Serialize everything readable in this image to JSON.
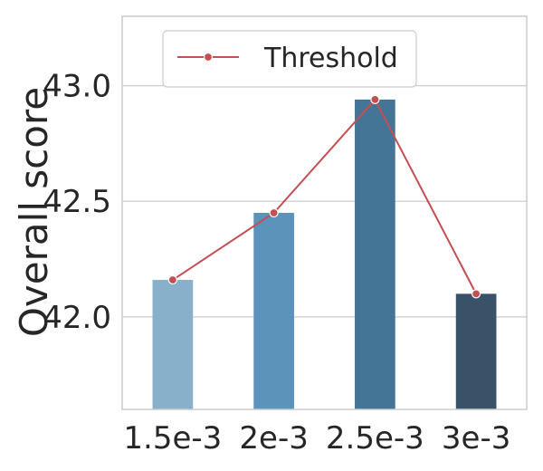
{
  "chart_data": {
    "type": "bar",
    "categories": [
      "1.5e-3",
      "2e-3",
      "2.5e-3",
      "3e-3"
    ],
    "values": [
      42.16,
      42.45,
      42.94,
      42.1
    ],
    "bar_colors": [
      "#89b0cb",
      "#5b93bb",
      "#447597",
      "#3a5268"
    ],
    "series": [
      {
        "name": "Threshold",
        "type": "line",
        "values": [
          42.16,
          42.45,
          42.94,
          42.1
        ],
        "color": "#c44e52"
      }
    ],
    "ylabel": "Overall score",
    "xlabel": "",
    "ylim": [
      41.6,
      43.3
    ],
    "yticks": [
      42.0,
      42.5,
      43.0
    ],
    "ytick_labels": [
      "42.0",
      "42.5",
      "43.0"
    ],
    "grid": true,
    "legend": "upper-left"
  }
}
